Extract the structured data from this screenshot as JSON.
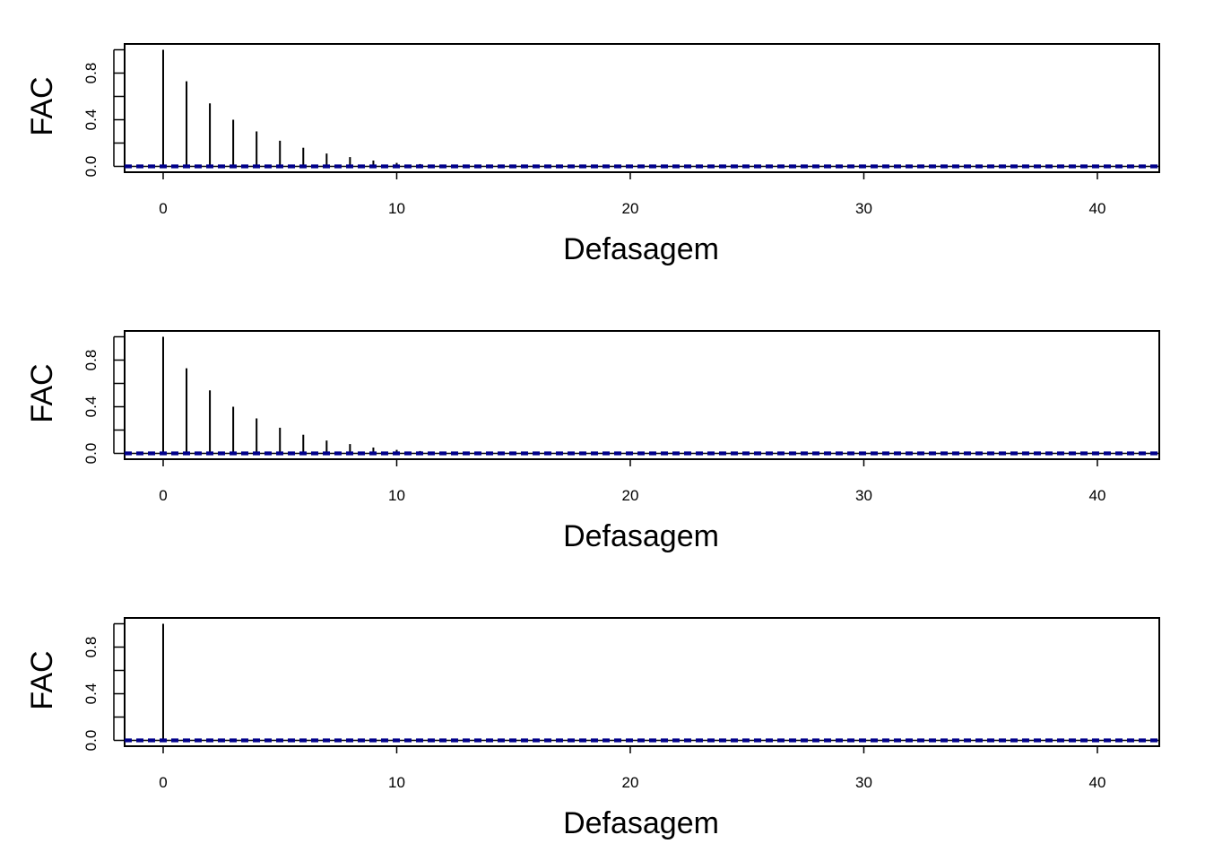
{
  "colors": {
    "axis": "#000000",
    "spike": "#000000",
    "conf_band": "#00008B"
  },
  "chart_data": [
    {
      "type": "bar",
      "xlabel": "Defasagem",
      "ylabel": "FAC",
      "xlim": [
        -1.65,
        42.65
      ],
      "ylim": [
        -0.05,
        1.05
      ],
      "xticks": [
        0,
        10,
        20,
        30,
        40
      ],
      "xtick_labels": [
        "0",
        "10",
        "20",
        "30",
        "40"
      ],
      "yticks": [
        0.0,
        0.2,
        0.4,
        0.6,
        0.8,
        1.0
      ],
      "ytick_labels": [
        "0.0",
        "",
        "0.4",
        "",
        "0.8",
        ""
      ],
      "lags": [
        0,
        1,
        2,
        3,
        4,
        5,
        6,
        7,
        8,
        9,
        10,
        11,
        12,
        13,
        14,
        15,
        16,
        17,
        18,
        19,
        20,
        21,
        22,
        23,
        24,
        25,
        26,
        27,
        28,
        29,
        30,
        31,
        32,
        33,
        34,
        35,
        36,
        37,
        38,
        39,
        40,
        41,
        42
      ],
      "values": [
        1.0,
        0.73,
        0.54,
        0.4,
        0.3,
        0.22,
        0.16,
        0.11,
        0.08,
        0.05,
        0.03,
        0.02,
        0.01,
        0.0,
        0.0,
        0.0,
        0.0,
        0.0,
        0.0,
        0.0,
        0.0,
        0.0,
        0.0,
        0.0,
        0.0,
        0.0,
        0.0,
        0.0,
        0.0,
        0.0,
        0.0,
        0.0,
        0.0,
        0.0,
        0.0,
        0.0,
        0.0,
        0.0,
        0.0,
        0.0,
        0.0,
        0.0,
        0.0
      ],
      "conf_band": [
        -0.005,
        0.005
      ]
    },
    {
      "type": "bar",
      "xlabel": "Defasagem",
      "ylabel": "FAC",
      "xlim": [
        -1.65,
        42.65
      ],
      "ylim": [
        -0.05,
        1.05
      ],
      "xticks": [
        0,
        10,
        20,
        30,
        40
      ],
      "xtick_labels": [
        "0",
        "10",
        "20",
        "30",
        "40"
      ],
      "yticks": [
        0.0,
        0.2,
        0.4,
        0.6,
        0.8,
        1.0
      ],
      "ytick_labels": [
        "0.0",
        "",
        "0.4",
        "",
        "0.8",
        ""
      ],
      "lags": [
        0,
        1,
        2,
        3,
        4,
        5,
        6,
        7,
        8,
        9,
        10,
        11,
        12,
        13,
        14,
        15,
        16,
        17,
        18,
        19,
        20,
        21,
        22,
        23,
        24,
        25,
        26,
        27,
        28,
        29,
        30,
        31,
        32,
        33,
        34,
        35,
        36,
        37,
        38,
        39,
        40,
        41,
        42
      ],
      "values": [
        1.0,
        0.73,
        0.54,
        0.4,
        0.3,
        0.22,
        0.16,
        0.11,
        0.08,
        0.05,
        0.03,
        0.02,
        0.01,
        0.0,
        0.0,
        0.0,
        0.0,
        0.0,
        0.0,
        0.0,
        0.0,
        0.0,
        0.0,
        0.0,
        0.0,
        0.0,
        0.0,
        0.0,
        0.0,
        0.0,
        0.0,
        0.0,
        0.0,
        0.0,
        0.0,
        0.0,
        0.0,
        0.0,
        0.0,
        0.0,
        0.0,
        0.0,
        0.0
      ],
      "conf_band": [
        -0.005,
        0.005
      ]
    },
    {
      "type": "bar",
      "xlabel": "Defasagem",
      "ylabel": "FAC",
      "xlim": [
        -1.65,
        42.65
      ],
      "ylim": [
        -0.05,
        1.05
      ],
      "xticks": [
        0,
        10,
        20,
        30,
        40
      ],
      "xtick_labels": [
        "0",
        "10",
        "20",
        "30",
        "40"
      ],
      "yticks": [
        0.0,
        0.2,
        0.4,
        0.6,
        0.8,
        1.0
      ],
      "ytick_labels": [
        "0.0",
        "",
        "0.4",
        "",
        "0.8",
        ""
      ],
      "lags": [
        0,
        1,
        2,
        3,
        4,
        5,
        6,
        7,
        8,
        9,
        10,
        11,
        12,
        13,
        14,
        15,
        16,
        17,
        18,
        19,
        20,
        21,
        22,
        23,
        24,
        25,
        26,
        27,
        28,
        29,
        30,
        31,
        32,
        33,
        34,
        35,
        36,
        37,
        38,
        39,
        40,
        41,
        42
      ],
      "values": [
        1.0,
        0.0,
        0.0,
        0.0,
        0.0,
        0.0,
        0.0,
        0.0,
        0.0,
        0.0,
        0.0,
        0.0,
        0.0,
        0.0,
        0.0,
        0.0,
        0.0,
        0.0,
        0.0,
        0.0,
        0.0,
        0.0,
        0.0,
        0.0,
        0.0,
        0.0,
        0.0,
        0.0,
        0.0,
        0.0,
        0.0,
        0.0,
        0.0,
        0.0,
        0.0,
        0.0,
        0.0,
        0.0,
        0.0,
        0.0,
        0.0,
        0.0,
        0.0
      ],
      "conf_band": [
        -0.005,
        0.005
      ]
    }
  ]
}
